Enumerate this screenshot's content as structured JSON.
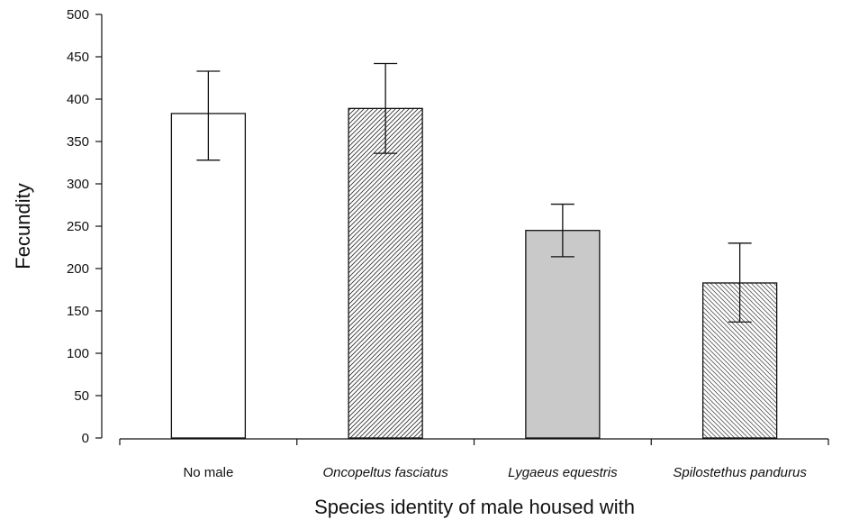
{
  "chart_data": {
    "type": "bar",
    "title": "",
    "xlabel": "Species identity of male housed with",
    "ylabel": "Fecundity",
    "ylim": [
      0,
      500
    ],
    "yticks": [
      0,
      50,
      100,
      150,
      200,
      250,
      300,
      350,
      400,
      450,
      500
    ],
    "categories": [
      {
        "label": "No male",
        "italic": false
      },
      {
        "label": "Oncopeltus fasciatus",
        "italic": true
      },
      {
        "label": "Lygaeus equestris",
        "italic": true
      },
      {
        "label": "Spilostethus pandurus",
        "italic": true
      }
    ],
    "values": [
      383,
      389,
      245,
      183
    ],
    "error_low": [
      328,
      336,
      214,
      137
    ],
    "error_high": [
      433,
      442,
      276,
      230
    ],
    "fills": [
      "white",
      "hatch-forward",
      "#c8c9c8",
      "hatch-back"
    ],
    "grid": false,
    "legend": "none"
  }
}
